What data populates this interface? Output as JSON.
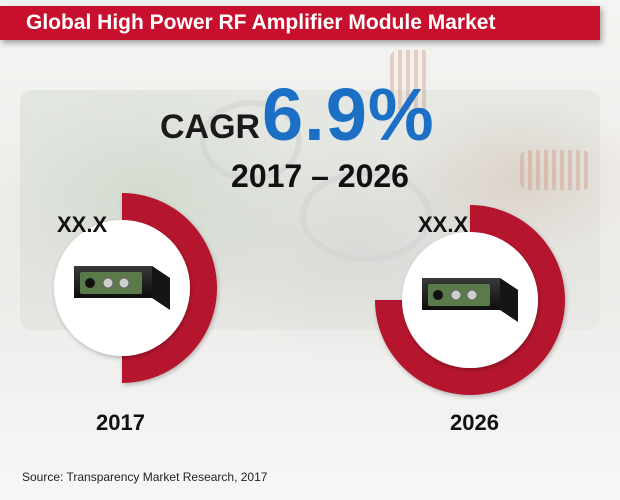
{
  "header": {
    "title": "Global High Power RF Amplifier Module Market"
  },
  "cagr": {
    "label": "CAGR",
    "value": "6.9%",
    "period": "2017 – 2026"
  },
  "chart_data": {
    "type": "pie",
    "categories": [
      "2017",
      "2026"
    ],
    "value_labels": [
      "XX.X",
      "XX.X"
    ],
    "series": [
      {
        "values": [
          50,
          75
        ]
      }
    ],
    "colors": {
      "arc": "#b5122d",
      "center": "#ffffff",
      "device": "#1c1c1c",
      "panel": "#5b7a4a"
    }
  },
  "footer": {
    "source": "Source: Transparency Market Research, 2017"
  }
}
